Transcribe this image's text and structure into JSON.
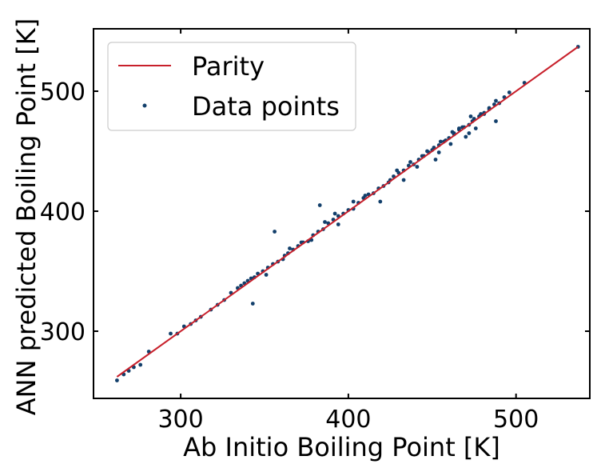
{
  "chart_data": {
    "type": "scatter",
    "title": "",
    "xlabel": "Ab Initio Boiling Point [K]",
    "ylabel": "ANN predicted Boiling Point [K]",
    "xlim": [
      248,
      544
    ],
    "ylim": [
      244,
      552
    ],
    "xticks": [
      300,
      400,
      500
    ],
    "yticks": [
      300,
      400,
      500
    ],
    "grid": false,
    "legend_position": "top-left",
    "series": [
      {
        "name": "Parity",
        "kind": "line",
        "color": "#c8202b",
        "x": [
          262,
          537
        ],
        "y": [
          262,
          537
        ]
      },
      {
        "name": "Data points",
        "kind": "scatter",
        "color": "#123f6b",
        "x": [
          262,
          266,
          269,
          272,
          276,
          281,
          294,
          298,
          302,
          306,
          309,
          312,
          318,
          322,
          326,
          330,
          334,
          336,
          338,
          340,
          342,
          344,
          346,
          349,
          352,
          355,
          358,
          361,
          364,
          367,
          370,
          373,
          376,
          379,
          382,
          385,
          388,
          391,
          394,
          397,
          400,
          403,
          406,
          409,
          412,
          415,
          418,
          421,
          424,
          427,
          430,
          433,
          436,
          439,
          442,
          445,
          448,
          451,
          454,
          457,
          460,
          463,
          466,
          469,
          472,
          475,
          478,
          481,
          484,
          487,
          490,
          493,
          496,
          505,
          537,
          343,
          356,
          383,
          386,
          392,
          419,
          433,
          452,
          470,
          447,
          461,
          476,
          365,
          372,
          378,
          394,
          403,
          410,
          425,
          437,
          444,
          455,
          463,
          468,
          473,
          479,
          484,
          488,
          441,
          450,
          458,
          466,
          474,
          429,
          454,
          462,
          472,
          481,
          488,
          351,
          362
        ],
        "y": [
          259,
          264,
          267,
          270,
          272,
          283,
          298,
          298,
          304,
          306,
          309,
          312,
          318,
          322,
          326,
          332,
          336,
          338,
          340,
          342,
          344,
          345,
          348,
          350,
          353,
          356,
          358,
          360,
          365,
          368,
          371,
          374,
          375,
          380,
          383,
          385,
          390,
          393,
          396,
          398,
          401,
          402,
          407,
          411,
          414,
          415,
          419,
          421,
          424,
          429,
          432,
          434,
          438,
          439,
          443,
          446,
          449,
          453,
          455,
          458,
          461,
          465,
          468,
          470,
          472,
          477,
          479,
          481,
          485,
          489,
          490,
          495,
          499,
          507,
          537,
          323,
          383,
          405,
          391,
          398,
          408,
          426,
          443,
          462,
          450,
          456,
          469,
          369,
          374,
          376,
          389,
          408,
          413,
          426,
          441,
          446,
          458,
          464,
          470,
          479,
          481,
          486,
          492,
          437,
          451,
          459,
          469,
          475,
          434,
          449,
          466,
          465,
          482,
          475,
          347,
          363
        ]
      }
    ]
  }
}
